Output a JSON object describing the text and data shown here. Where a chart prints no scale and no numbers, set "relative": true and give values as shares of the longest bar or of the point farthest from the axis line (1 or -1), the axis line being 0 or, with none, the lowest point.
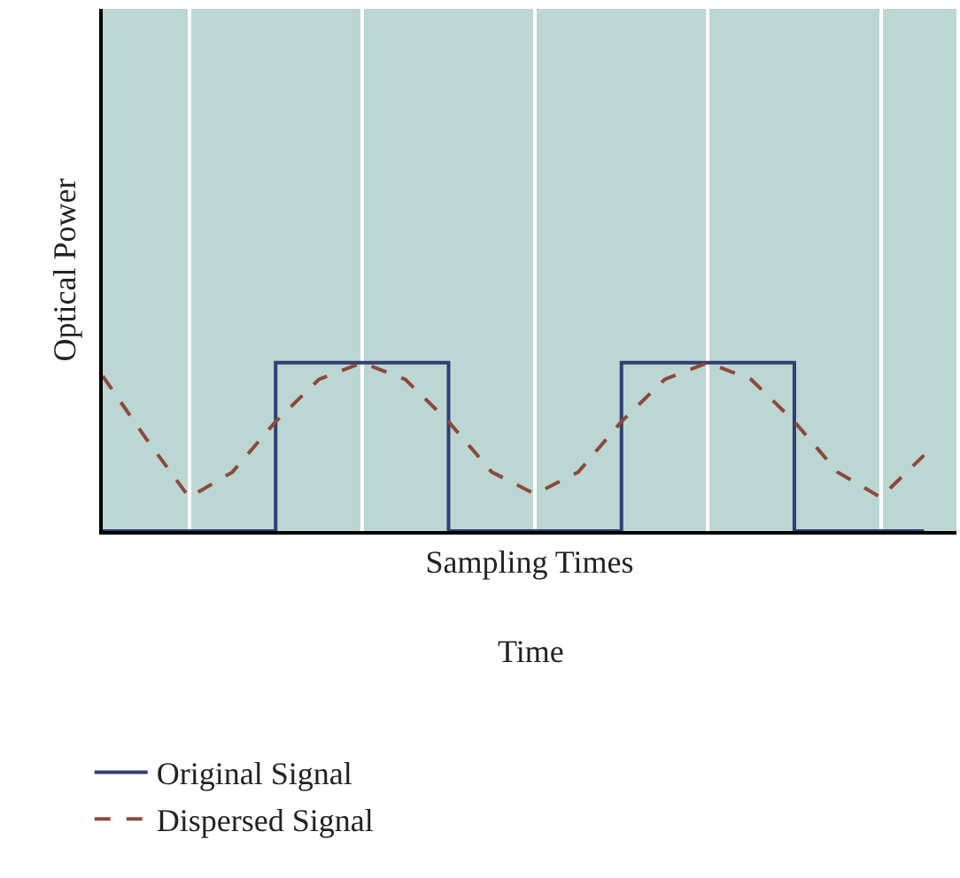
{
  "chart_data": {
    "type": "line",
    "relative": true,
    "xlabel": "Sampling Times",
    "ylabel": "Optical Power",
    "annotations": [
      "Time"
    ],
    "categories": [
      null,
      null,
      null,
      null,
      null,
      null,
      null,
      null,
      null,
      null,
      null,
      null,
      null,
      null,
      null,
      null,
      null,
      null,
      null,
      null
    ],
    "series": [
      {
        "name": "Original Signal",
        "type": "step",
        "color": "#2f3f6e",
        "line_style": "solid",
        "values": [
          0,
          0,
          0,
          0,
          1,
          1,
          1,
          1,
          0,
          0,
          0,
          0,
          1,
          1,
          1,
          1,
          0,
          0,
          0,
          0
        ]
      },
      {
        "name": "Dispersed Signal",
        "color": "#8b4a3a",
        "line_style": "dashed",
        "values": [
          0.92,
          0.55,
          0.2,
          0.35,
          0.65,
          0.9,
          1.0,
          0.9,
          0.65,
          0.35,
          0.22,
          0.35,
          0.65,
          0.9,
          1.0,
          0.9,
          0.65,
          0.35,
          0.2,
          0.45
        ]
      }
    ],
    "tick_labels": false,
    "grid": "x",
    "legend": "bottom",
    "marker": "none"
  }
}
